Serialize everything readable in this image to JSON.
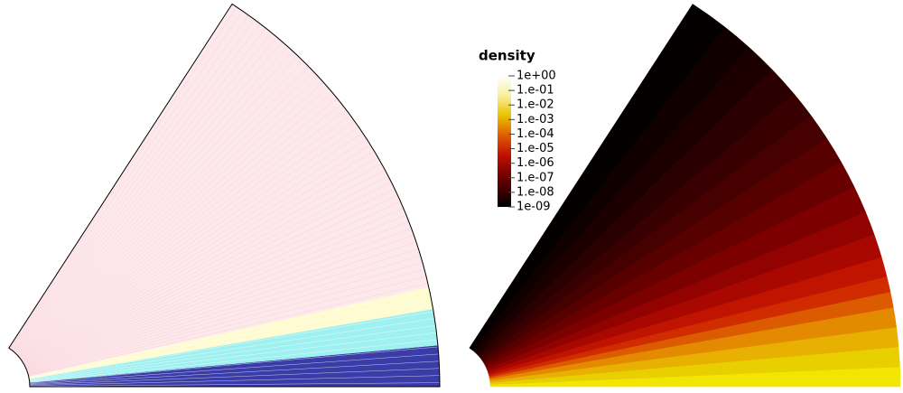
{
  "chart_data": {
    "type": "contour",
    "colorbar": {
      "title": "density",
      "scale": "log",
      "clim": [
        1e-09,
        1
      ],
      "ticks": [
        {
          "value": 1,
          "label": "1e+00"
        },
        {
          "value": 0.1,
          "label": "1.e-01"
        },
        {
          "value": 0.01,
          "label": "1.e-02"
        },
        {
          "value": 0.001,
          "label": "1.e-03"
        },
        {
          "value": 0.0001,
          "label": "1.e-04"
        },
        {
          "value": 1e-05,
          "label": "1.e-05"
        },
        {
          "value": 1e-06,
          "label": "1.e-06"
        },
        {
          "value": 1e-07,
          "label": "1.e-07"
        },
        {
          "value": 1e-08,
          "label": "1.e-08"
        },
        {
          "value": 1e-09,
          "label": "1e-09"
        }
      ]
    }
  }
}
